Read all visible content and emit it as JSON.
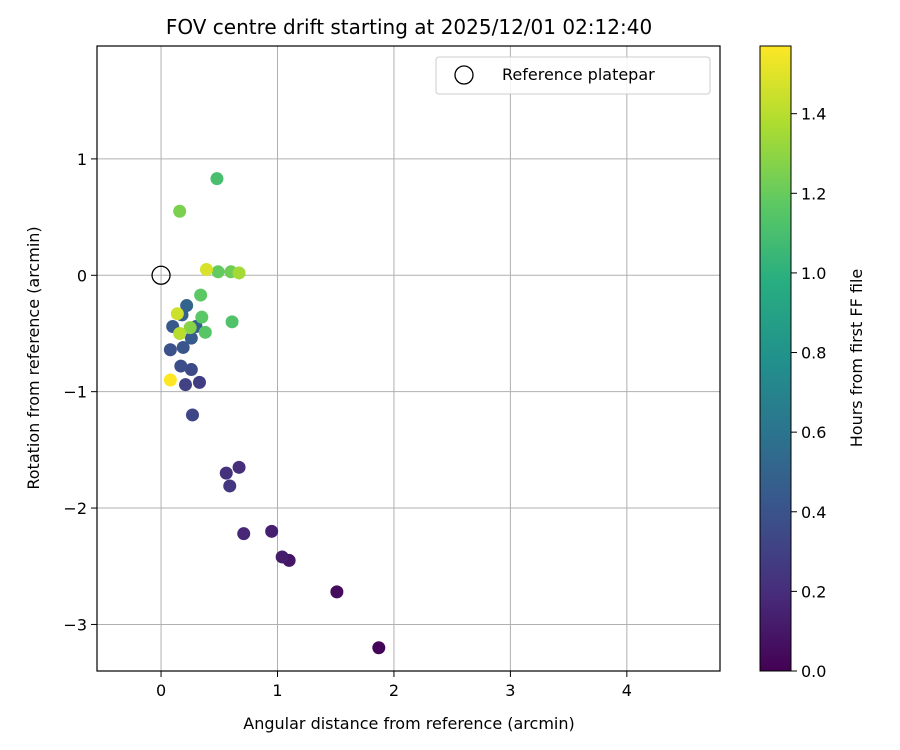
{
  "chart_data": {
    "type": "scatter",
    "title": "FOV centre drift starting at 2025/12/01 02:12:40",
    "xlabel": "Angular distance from reference (arcmin)",
    "ylabel": "Rotation from reference (arcmin)",
    "xlim": [
      -0.55,
      4.8
    ],
    "ylim": [
      -3.4,
      1.97
    ],
    "xticks": [
      0,
      1,
      2,
      3,
      4
    ],
    "xtick_labels": [
      "0",
      "1",
      "2",
      "3",
      "4"
    ],
    "yticks": [
      -3,
      -2,
      -1,
      0,
      1
    ],
    "ytick_labels": [
      "−3",
      "−2",
      "−1",
      "0",
      "1"
    ],
    "grid": true,
    "legend": {
      "position": "top-right",
      "entries": [
        "Reference platepar"
      ]
    },
    "reference_point": {
      "x": 0,
      "y": 0
    },
    "colorbar": {
      "label": "Hours from first FF file",
      "colormap": "viridis",
      "range": [
        0,
        1.57
      ],
      "ticks": [
        0.0,
        0.2,
        0.4,
        0.6,
        0.8,
        1.0,
        1.2,
        1.4
      ],
      "tick_labels": [
        "0.0",
        "0.2",
        "0.4",
        "0.6",
        "0.8",
        "1.0",
        "1.2",
        "1.4"
      ]
    },
    "points": [
      {
        "x": 1.87,
        "y": -3.2,
        "hours": 0.02
      },
      {
        "x": 1.51,
        "y": -2.72,
        "hours": 0.05
      },
      {
        "x": 1.1,
        "y": -2.45,
        "hours": 0.09
      },
      {
        "x": 1.04,
        "y": -2.42,
        "hours": 0.12
      },
      {
        "x": 0.95,
        "y": -2.2,
        "hours": 0.14
      },
      {
        "x": 0.71,
        "y": -2.22,
        "hours": 0.17
      },
      {
        "x": 0.67,
        "y": -1.65,
        "hours": 0.2
      },
      {
        "x": 0.56,
        "y": -1.7,
        "hours": 0.22
      },
      {
        "x": 0.59,
        "y": -1.81,
        "hours": 0.25
      },
      {
        "x": 0.33,
        "y": -0.92,
        "hours": 0.28
      },
      {
        "x": 0.21,
        "y": -0.94,
        "hours": 0.3
      },
      {
        "x": 0.27,
        "y": -1.2,
        "hours": 0.33
      },
      {
        "x": 0.26,
        "y": -0.81,
        "hours": 0.35
      },
      {
        "x": 0.17,
        "y": -0.78,
        "hours": 0.37
      },
      {
        "x": 0.08,
        "y": -0.64,
        "hours": 0.39
      },
      {
        "x": 0.19,
        "y": -0.62,
        "hours": 0.41
      },
      {
        "x": 0.1,
        "y": -0.44,
        "hours": 0.43
      },
      {
        "x": 0.26,
        "y": -0.54,
        "hours": 0.45
      },
      {
        "x": 0.3,
        "y": -0.44,
        "hours": 0.47
      },
      {
        "x": 0.18,
        "y": -0.34,
        "hours": 0.48
      },
      {
        "x": 0.22,
        "y": -0.26,
        "hours": 0.5
      },
      {
        "x": 0.48,
        "y": 0.83,
        "hours": 1.1
      },
      {
        "x": 0.61,
        "y": -0.4,
        "hours": 1.13
      },
      {
        "x": 0.38,
        "y": -0.49,
        "hours": 1.15
      },
      {
        "x": 0.35,
        "y": -0.36,
        "hours": 1.16
      },
      {
        "x": 0.34,
        "y": -0.17,
        "hours": 1.17
      },
      {
        "x": 0.49,
        "y": 0.03,
        "hours": 1.19
      },
      {
        "x": 0.6,
        "y": 0.03,
        "hours": 1.22
      },
      {
        "x": 0.16,
        "y": 0.55,
        "hours": 1.25
      },
      {
        "x": 0.25,
        "y": -0.45,
        "hours": 1.28
      },
      {
        "x": 0.67,
        "y": 0.02,
        "hours": 1.35
      },
      {
        "x": 0.16,
        "y": -0.5,
        "hours": 1.4
      },
      {
        "x": 0.14,
        "y": -0.33,
        "hours": 1.45
      },
      {
        "x": 0.39,
        "y": 0.05,
        "hours": 1.48
      },
      {
        "x": 0.08,
        "y": -0.9,
        "hours": 1.57
      }
    ]
  }
}
